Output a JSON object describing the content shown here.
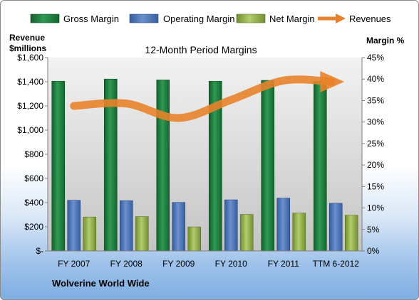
{
  "chart_data": {
    "type": "bar",
    "title": "12-Month Period Margins",
    "left_axis_label_line1": "Revenue",
    "left_axis_label_line2": "$millions",
    "right_axis_label": "Margin %",
    "footer": "Wolverine World Wide",
    "categories": [
      "FY 2007",
      "FY 2008",
      "FY 2009",
      "FY 2010",
      "FY 2011",
      "TTM 6-2012"
    ],
    "left_ticks": [
      "$-",
      "$200",
      "$400",
      "$600",
      "$800",
      "$1,000",
      "$1,200",
      "$1,400",
      "$1,600"
    ],
    "right_ticks": [
      "0%",
      "5%",
      "10%",
      "15%",
      "20%",
      "25%",
      "30%",
      "35%",
      "40%",
      "45%"
    ],
    "ylim_left": [
      0,
      1600
    ],
    "ylim_right": [
      0,
      45
    ],
    "grid": false,
    "legend_position": "top",
    "series": [
      {
        "name": "Gross Margin",
        "axis": "right",
        "kind": "bar",
        "color": "#1e7d3e",
        "values": [
          39.5,
          40.0,
          39.8,
          39.5,
          39.7,
          39.5
        ]
      },
      {
        "name": "Operating Margin",
        "axis": "right",
        "kind": "bar",
        "color": "#4f75b8",
        "values": [
          11.8,
          11.7,
          11.3,
          11.9,
          12.3,
          11.1
        ]
      },
      {
        "name": "Net Margin",
        "axis": "right",
        "kind": "bar",
        "color": "#93b54a",
        "values": [
          7.9,
          8.0,
          5.6,
          8.5,
          8.8,
          8.3
        ]
      },
      {
        "name": "Revenues",
        "axis": "left",
        "kind": "line",
        "color": "#e8822a",
        "values": [
          1200,
          1220,
          1100,
          1250,
          1410,
          1400
        ]
      }
    ]
  }
}
